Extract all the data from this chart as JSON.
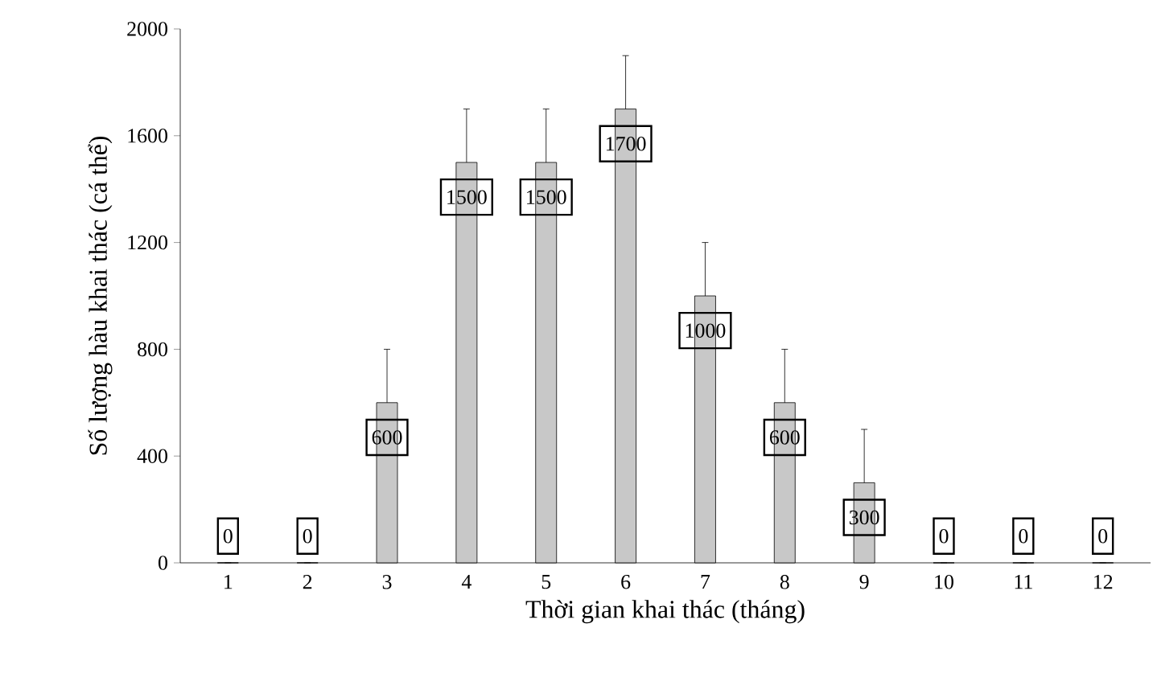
{
  "chart_data": {
    "type": "bar",
    "xlabel": "Thời gian khai thác (tháng)",
    "ylabel": "Số lượng hàu khai thác (cá thể)",
    "categories": [
      "1",
      "2",
      "3",
      "4",
      "5",
      "6",
      "7",
      "8",
      "9",
      "10",
      "11",
      "12"
    ],
    "values": [
      0,
      0,
      600,
      1500,
      1500,
      1700,
      1000,
      600,
      300,
      0,
      0,
      0
    ],
    "errors": [
      null,
      null,
      200,
      200,
      200,
      200,
      200,
      200,
      200,
      null,
      null,
      null
    ],
    "color": "#c8c8c8",
    "ylim": [
      0,
      2000
    ],
    "yticks": [
      0,
      400,
      800,
      1200,
      1600,
      2000
    ],
    "grid": false,
    "data_labels": true
  }
}
